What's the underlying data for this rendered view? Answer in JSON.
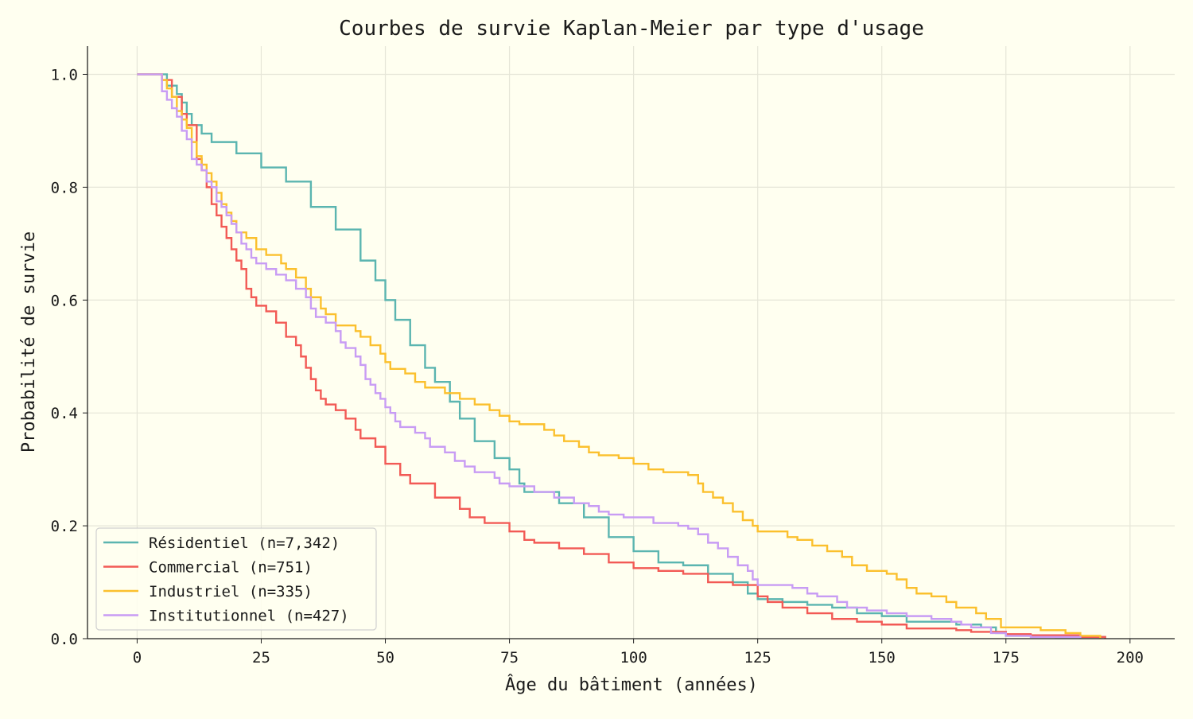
{
  "chart_data": {
    "type": "line",
    "step": true,
    "title": "Courbes de survie Kaplan-Meier par type d'usage",
    "xlabel": "Âge du bâtiment (années)",
    "ylabel": "Probabilité de survie",
    "xlim": [
      -10,
      209
    ],
    "ylim": [
      0,
      1.05
    ],
    "xticks": [
      0,
      25,
      50,
      75,
      100,
      125,
      150,
      175,
      200
    ],
    "xtick_labels": [
      "0",
      "25",
      "50",
      "75",
      "100",
      "125",
      "150",
      "175",
      "200"
    ],
    "yticks": [
      0,
      0.2,
      0.4,
      0.6,
      0.8,
      1.0
    ],
    "ytick_labels": [
      "0.0",
      "0.2",
      "0.4",
      "0.6",
      "0.8",
      "1.0"
    ],
    "grid": true,
    "legend_position": "bottom-left",
    "background": "#fffff0",
    "series": [
      {
        "name": "Résidentiel (n=7,342)",
        "color": "#5bb5b0",
        "points": [
          [
            0,
            1
          ],
          [
            5,
            1
          ],
          [
            6,
            0.98
          ],
          [
            8,
            0.965
          ],
          [
            9,
            0.95
          ],
          [
            10,
            0.93
          ],
          [
            11,
            0.91
          ],
          [
            13,
            0.895
          ],
          [
            15,
            0.88
          ],
          [
            20,
            0.86
          ],
          [
            25,
            0.835
          ],
          [
            30,
            0.81
          ],
          [
            35,
            0.765
          ],
          [
            40,
            0.725
          ],
          [
            45,
            0.67
          ],
          [
            48,
            0.635
          ],
          [
            50,
            0.6
          ],
          [
            52,
            0.565
          ],
          [
            55,
            0.52
          ],
          [
            58,
            0.48
          ],
          [
            60,
            0.455
          ],
          [
            63,
            0.42
          ],
          [
            65,
            0.39
          ],
          [
            68,
            0.35
          ],
          [
            72,
            0.32
          ],
          [
            75,
            0.3
          ],
          [
            77,
            0.275
          ],
          [
            78,
            0.26
          ],
          [
            85,
            0.24
          ],
          [
            90,
            0.215
          ],
          [
            95,
            0.18
          ],
          [
            100,
            0.155
          ],
          [
            105,
            0.135
          ],
          [
            110,
            0.13
          ],
          [
            115,
            0.115
          ],
          [
            120,
            0.1
          ],
          [
            123,
            0.08
          ],
          [
            125,
            0.07
          ],
          [
            130,
            0.065
          ],
          [
            135,
            0.06
          ],
          [
            140,
            0.055
          ],
          [
            145,
            0.045
          ],
          [
            150,
            0.04
          ],
          [
            155,
            0.03
          ],
          [
            160,
            0.03
          ],
          [
            165,
            0.025
          ],
          [
            170,
            0.02
          ],
          [
            173,
            0.01
          ],
          [
            175,
            0.005
          ],
          [
            185,
            0.003
          ],
          [
            195,
            0
          ]
        ]
      },
      {
        "name": "Commercial (n=751)",
        "color": "#f25a55",
        "points": [
          [
            0,
            1
          ],
          [
            5,
            0.99
          ],
          [
            7,
            0.96
          ],
          [
            9,
            0.93
          ],
          [
            10,
            0.91
          ],
          [
            12,
            0.85
          ],
          [
            13,
            0.83
          ],
          [
            14,
            0.8
          ],
          [
            15,
            0.77
          ],
          [
            16,
            0.75
          ],
          [
            17,
            0.73
          ],
          [
            18,
            0.71
          ],
          [
            19,
            0.69
          ],
          [
            20,
            0.67
          ],
          [
            21,
            0.655
          ],
          [
            22,
            0.62
          ],
          [
            23,
            0.605
          ],
          [
            24,
            0.59
          ],
          [
            26,
            0.58
          ],
          [
            28,
            0.56
          ],
          [
            30,
            0.535
          ],
          [
            32,
            0.52
          ],
          [
            33,
            0.5
          ],
          [
            34,
            0.48
          ],
          [
            35,
            0.46
          ],
          [
            36,
            0.44
          ],
          [
            37,
            0.425
          ],
          [
            38,
            0.415
          ],
          [
            40,
            0.405
          ],
          [
            42,
            0.39
          ],
          [
            44,
            0.37
          ],
          [
            45,
            0.355
          ],
          [
            48,
            0.34
          ],
          [
            50,
            0.31
          ],
          [
            53,
            0.29
          ],
          [
            55,
            0.275
          ],
          [
            60,
            0.25
          ],
          [
            65,
            0.23
          ],
          [
            67,
            0.215
          ],
          [
            70,
            0.205
          ],
          [
            75,
            0.19
          ],
          [
            78,
            0.175
          ],
          [
            80,
            0.17
          ],
          [
            85,
            0.16
          ],
          [
            90,
            0.15
          ],
          [
            95,
            0.135
          ],
          [
            100,
            0.125
          ],
          [
            105,
            0.12
          ],
          [
            110,
            0.115
          ],
          [
            115,
            0.1
          ],
          [
            120,
            0.095
          ],
          [
            125,
            0.075
          ],
          [
            127,
            0.065
          ],
          [
            130,
            0.055
          ],
          [
            135,
            0.045
          ],
          [
            140,
            0.035
          ],
          [
            145,
            0.03
          ],
          [
            150,
            0.025
          ],
          [
            155,
            0.018
          ],
          [
            165,
            0.015
          ],
          [
            168,
            0.012
          ],
          [
            175,
            0.008
          ],
          [
            180,
            0.006
          ],
          [
            190,
            0.003
          ],
          [
            195,
            0
          ]
        ]
      },
      {
        "name": "Industriel (n=335)",
        "color": "#fbc02d",
        "points": [
          [
            0,
            1
          ],
          [
            5,
            0.99
          ],
          [
            6,
            0.975
          ],
          [
            7,
            0.96
          ],
          [
            8,
            0.935
          ],
          [
            9,
            0.92
          ],
          [
            10,
            0.905
          ],
          [
            11,
            0.88
          ],
          [
            12,
            0.855
          ],
          [
            13,
            0.84
          ],
          [
            14,
            0.825
          ],
          [
            15,
            0.81
          ],
          [
            16,
            0.79
          ],
          [
            17,
            0.77
          ],
          [
            18,
            0.755
          ],
          [
            19,
            0.74
          ],
          [
            20,
            0.72
          ],
          [
            22,
            0.71
          ],
          [
            24,
            0.69
          ],
          [
            26,
            0.68
          ],
          [
            29,
            0.665
          ],
          [
            30,
            0.655
          ],
          [
            32,
            0.64
          ],
          [
            34,
            0.62
          ],
          [
            35,
            0.605
          ],
          [
            37,
            0.585
          ],
          [
            38,
            0.575
          ],
          [
            40,
            0.555
          ],
          [
            44,
            0.545
          ],
          [
            45,
            0.535
          ],
          [
            47,
            0.52
          ],
          [
            49,
            0.505
          ],
          [
            50,
            0.49
          ],
          [
            51,
            0.478
          ],
          [
            54,
            0.47
          ],
          [
            56,
            0.455
          ],
          [
            58,
            0.445
          ],
          [
            62,
            0.435
          ],
          [
            65,
            0.425
          ],
          [
            68,
            0.415
          ],
          [
            71,
            0.405
          ],
          [
            73,
            0.395
          ],
          [
            75,
            0.385
          ],
          [
            77,
            0.38
          ],
          [
            82,
            0.37
          ],
          [
            84,
            0.36
          ],
          [
            86,
            0.35
          ],
          [
            89,
            0.34
          ],
          [
            91,
            0.33
          ],
          [
            93,
            0.325
          ],
          [
            97,
            0.32
          ],
          [
            100,
            0.31
          ],
          [
            103,
            0.3
          ],
          [
            106,
            0.295
          ],
          [
            111,
            0.29
          ],
          [
            113,
            0.275
          ],
          [
            114,
            0.26
          ],
          [
            116,
            0.25
          ],
          [
            118,
            0.24
          ],
          [
            120,
            0.225
          ],
          [
            122,
            0.21
          ],
          [
            124,
            0.2
          ],
          [
            125,
            0.19
          ],
          [
            131,
            0.18
          ],
          [
            133,
            0.175
          ],
          [
            136,
            0.165
          ],
          [
            139,
            0.155
          ],
          [
            142,
            0.145
          ],
          [
            144,
            0.13
          ],
          [
            147,
            0.12
          ],
          [
            151,
            0.115
          ],
          [
            153,
            0.105
          ],
          [
            155,
            0.09
          ],
          [
            157,
            0.08
          ],
          [
            160,
            0.075
          ],
          [
            163,
            0.065
          ],
          [
            165,
            0.055
          ],
          [
            169,
            0.045
          ],
          [
            171,
            0.035
          ],
          [
            174,
            0.02
          ],
          [
            182,
            0.015
          ],
          [
            187,
            0.01
          ],
          [
            190,
            0.005
          ],
          [
            194,
            0
          ]
        ]
      },
      {
        "name": "Institutionnel (n=427)",
        "color": "#c89cf4",
        "points": [
          [
            0,
            1
          ],
          [
            5,
            0.97
          ],
          [
            6,
            0.955
          ],
          [
            7,
            0.94
          ],
          [
            8,
            0.925
          ],
          [
            9,
            0.9
          ],
          [
            10,
            0.885
          ],
          [
            11,
            0.85
          ],
          [
            12,
            0.84
          ],
          [
            13,
            0.83
          ],
          [
            14,
            0.81
          ],
          [
            15,
            0.8
          ],
          [
            16,
            0.775
          ],
          [
            17,
            0.765
          ],
          [
            18,
            0.75
          ],
          [
            19,
            0.735
          ],
          [
            20,
            0.72
          ],
          [
            21,
            0.7
          ],
          [
            22,
            0.69
          ],
          [
            23,
            0.675
          ],
          [
            24,
            0.665
          ],
          [
            26,
            0.655
          ],
          [
            28,
            0.645
          ],
          [
            30,
            0.635
          ],
          [
            32,
            0.62
          ],
          [
            34,
            0.605
          ],
          [
            35,
            0.585
          ],
          [
            36,
            0.57
          ],
          [
            38,
            0.56
          ],
          [
            40,
            0.545
          ],
          [
            41,
            0.525
          ],
          [
            42,
            0.515
          ],
          [
            44,
            0.5
          ],
          [
            45,
            0.485
          ],
          [
            46,
            0.46
          ],
          [
            47,
            0.45
          ],
          [
            48,
            0.435
          ],
          [
            49,
            0.425
          ],
          [
            50,
            0.41
          ],
          [
            51,
            0.4
          ],
          [
            52,
            0.385
          ],
          [
            53,
            0.375
          ],
          [
            56,
            0.365
          ],
          [
            58,
            0.355
          ],
          [
            59,
            0.34
          ],
          [
            62,
            0.33
          ],
          [
            64,
            0.315
          ],
          [
            66,
            0.305
          ],
          [
            68,
            0.295
          ],
          [
            72,
            0.285
          ],
          [
            73,
            0.275
          ],
          [
            75,
            0.27
          ],
          [
            80,
            0.26
          ],
          [
            84,
            0.25
          ],
          [
            88,
            0.24
          ],
          [
            91,
            0.235
          ],
          [
            93,
            0.225
          ],
          [
            95,
            0.22
          ],
          [
            98,
            0.215
          ],
          [
            104,
            0.205
          ],
          [
            109,
            0.2
          ],
          [
            111,
            0.195
          ],
          [
            113,
            0.185
          ],
          [
            115,
            0.17
          ],
          [
            117,
            0.16
          ],
          [
            119,
            0.145
          ],
          [
            121,
            0.13
          ],
          [
            123,
            0.12
          ],
          [
            124,
            0.105
          ],
          [
            125,
            0.095
          ],
          [
            132,
            0.09
          ],
          [
            135,
            0.08
          ],
          [
            137,
            0.075
          ],
          [
            141,
            0.065
          ],
          [
            143,
            0.055
          ],
          [
            147,
            0.05
          ],
          [
            151,
            0.045
          ],
          [
            155,
            0.04
          ],
          [
            160,
            0.035
          ],
          [
            164,
            0.03
          ],
          [
            166,
            0.025
          ],
          [
            168,
            0.02
          ],
          [
            172,
            0.01
          ],
          [
            175,
            0.005
          ],
          [
            180,
            0.003
          ],
          [
            190,
            0
          ]
        ]
      }
    ]
  }
}
